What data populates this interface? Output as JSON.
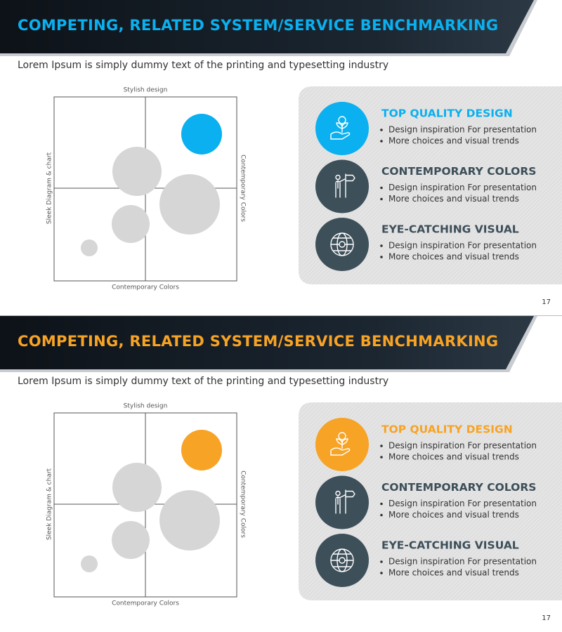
{
  "slides": [
    {
      "title": "COMPETING, RELATED SYSTEM/SERVICE BENCHMARKING",
      "subtitle": "Lorem Ipsum is simply dummy text of the printing and typesetting industry",
      "accent": "#0ab0ef",
      "axes": {
        "top": "Stylish design",
        "bottom": "Contemporary Colors",
        "left": "Sleek Diagram & chart",
        "right": "Contemporary Colors"
      },
      "items": [
        {
          "heading": "TOP QUALITY DESIGN",
          "bullets": [
            "Design inspiration For presentation",
            "More choices and visual trends"
          ]
        },
        {
          "heading": "CONTEMPORARY COLORS",
          "bullets": [
            "Design inspiration For presentation",
            "More choices and visual trends"
          ]
        },
        {
          "heading": "EYE-CATCHING VISUAL",
          "bullets": [
            "Design inspiration For presentation",
            "More choices and visual trends"
          ]
        }
      ],
      "page": "17"
    },
    {
      "title": "COMPETING, RELATED SYSTEM/SERVICE BENCHMARKING",
      "subtitle": "Lorem Ipsum is simply dummy text of the printing and typesetting industry",
      "accent": "#f7a325",
      "axes": {
        "top": "Stylish design",
        "bottom": "Contemporary Colors",
        "left": "Sleek Diagram & chart",
        "right": "Contemporary Colors"
      },
      "items": [
        {
          "heading": "TOP QUALITY DESIGN",
          "bullets": [
            "Design inspiration For presentation",
            "More choices and visual trends"
          ]
        },
        {
          "heading": "CONTEMPORARY COLORS",
          "bullets": [
            "Design inspiration For presentation",
            "More choices and visual trends"
          ]
        },
        {
          "heading": "EYE-CATCHING VISUAL",
          "bullets": [
            "Design inspiration For presentation",
            "More choices and visual trends"
          ]
        }
      ],
      "page": "17"
    }
  ]
}
